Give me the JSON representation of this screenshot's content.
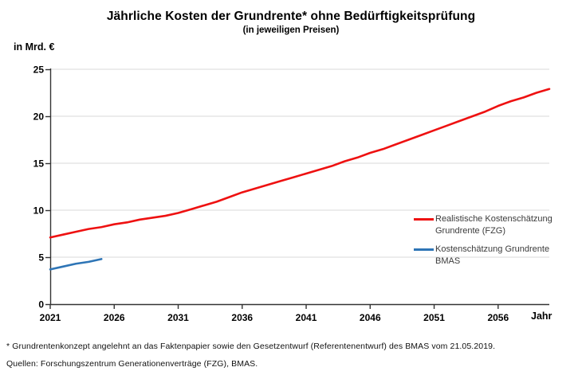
{
  "chart_data": {
    "type": "line",
    "title": "Jährliche Kosten der Grundrente* ohne Bedürftigkeitsprüfung",
    "subtitle": "(in jeweiligen Preisen)",
    "y_axis_label": "in Mrd. €",
    "x_axis_label": "Jahr",
    "xlim": [
      2021,
      2060
    ],
    "ylim": [
      0,
      25
    ],
    "x_ticks": [
      2021,
      2026,
      2031,
      2036,
      2041,
      2046,
      2051,
      2056
    ],
    "y_ticks": [
      0,
      5,
      10,
      15,
      20,
      25
    ],
    "grid": "horizontal-light-gray",
    "legend_position": "right-middle",
    "series": [
      {
        "id": "fzg",
        "name": "Realistische Kostenschätzung Grundrente (FZG)",
        "color": "#ee1111",
        "x": [
          2021,
          2022,
          2023,
          2024,
          2025,
          2026,
          2027,
          2028,
          2029,
          2030,
          2031,
          2032,
          2033,
          2034,
          2035,
          2036,
          2037,
          2038,
          2039,
          2040,
          2041,
          2042,
          2043,
          2044,
          2045,
          2046,
          2047,
          2048,
          2049,
          2050,
          2051,
          2052,
          2053,
          2054,
          2055,
          2056,
          2057,
          2058,
          2059,
          2060
        ],
        "values": [
          7.1,
          7.4,
          7.7,
          8.0,
          8.2,
          8.5,
          8.7,
          9.0,
          9.2,
          9.4,
          9.7,
          10.1,
          10.5,
          10.9,
          11.4,
          11.9,
          12.3,
          12.7,
          13.1,
          13.5,
          13.9,
          14.3,
          14.7,
          15.2,
          15.6,
          16.1,
          16.5,
          17.0,
          17.5,
          18.0,
          18.5,
          19.0,
          19.5,
          20.0,
          20.5,
          21.1,
          21.6,
          22.0,
          22.5,
          22.9
        ]
      },
      {
        "id": "bmas",
        "name": "Kostenschätzung Grundrente BMAS",
        "color": "#2e75b6",
        "x": [
          2021,
          2022,
          2023,
          2024,
          2025
        ],
        "values": [
          3.7,
          4.0,
          4.3,
          4.5,
          4.8
        ]
      }
    ]
  },
  "footnotes": {
    "asterisk": "* Grundrentenkonzept angelehnt an das Faktenpapier sowie den Gesetzentwurf (Referentenentwurf) des BMAS vom 21.05.2019.",
    "sources": "Quellen: Forschungszentrum Generationenverträge (FZG), BMAS."
  },
  "colors": {
    "fzg_line": "#ee1111",
    "bmas_line": "#2e75b6",
    "gridline": "#d9d9d9",
    "axis": "#333333",
    "text": "#000000",
    "legend_text": "#3b3b3b",
    "background": "#ffffff"
  }
}
